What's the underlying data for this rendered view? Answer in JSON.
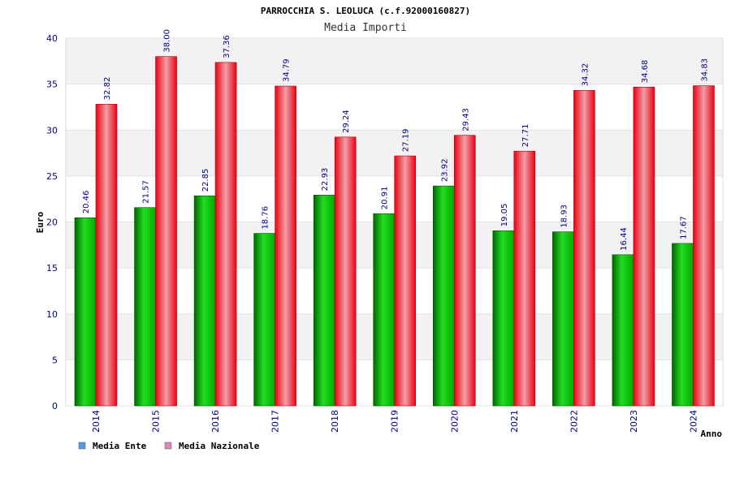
{
  "chart_data": {
    "type": "bar",
    "title": "PARROCCHIA S. LEOLUCA (c.f.92000160827)",
    "subtitle": "Media Importi",
    "xlabel": "Anno",
    "ylabel": "Euro",
    "ylim": [
      0,
      40
    ],
    "yticks": [
      0,
      5,
      10,
      15,
      20,
      25,
      30,
      35,
      40
    ],
    "grid": true,
    "legend_position": "bottom-left",
    "categories": [
      "2014",
      "2015",
      "2016",
      "2017",
      "2018",
      "2019",
      "2020",
      "2021",
      "2022",
      "2023",
      "2024"
    ],
    "series": [
      {
        "name": "Media Ente",
        "color": "#00aa00",
        "legend_color": "#5599ee",
        "values": [
          20.46,
          21.57,
          22.85,
          18.76,
          22.93,
          20.91,
          23.92,
          19.05,
          18.93,
          16.44,
          17.67
        ],
        "labels": [
          "20.46",
          "21.57",
          "22.85",
          "18.76",
          "22.93",
          "20.91",
          "23.92",
          "19.05",
          "18.93",
          "16.44",
          "17.67"
        ]
      },
      {
        "name": "Media Nazionale",
        "color": "#ee1122",
        "legend_color": "#dd88bb",
        "values": [
          32.82,
          38.0,
          37.36,
          34.79,
          29.24,
          27.19,
          29.43,
          27.71,
          34.32,
          34.68,
          34.83
        ],
        "labels": [
          "32.82",
          "38.00",
          "37.36",
          "34.79",
          "29.24",
          "27.19",
          "29.43",
          "27.71",
          "34.32",
          "34.68",
          "34.83"
        ]
      }
    ]
  }
}
